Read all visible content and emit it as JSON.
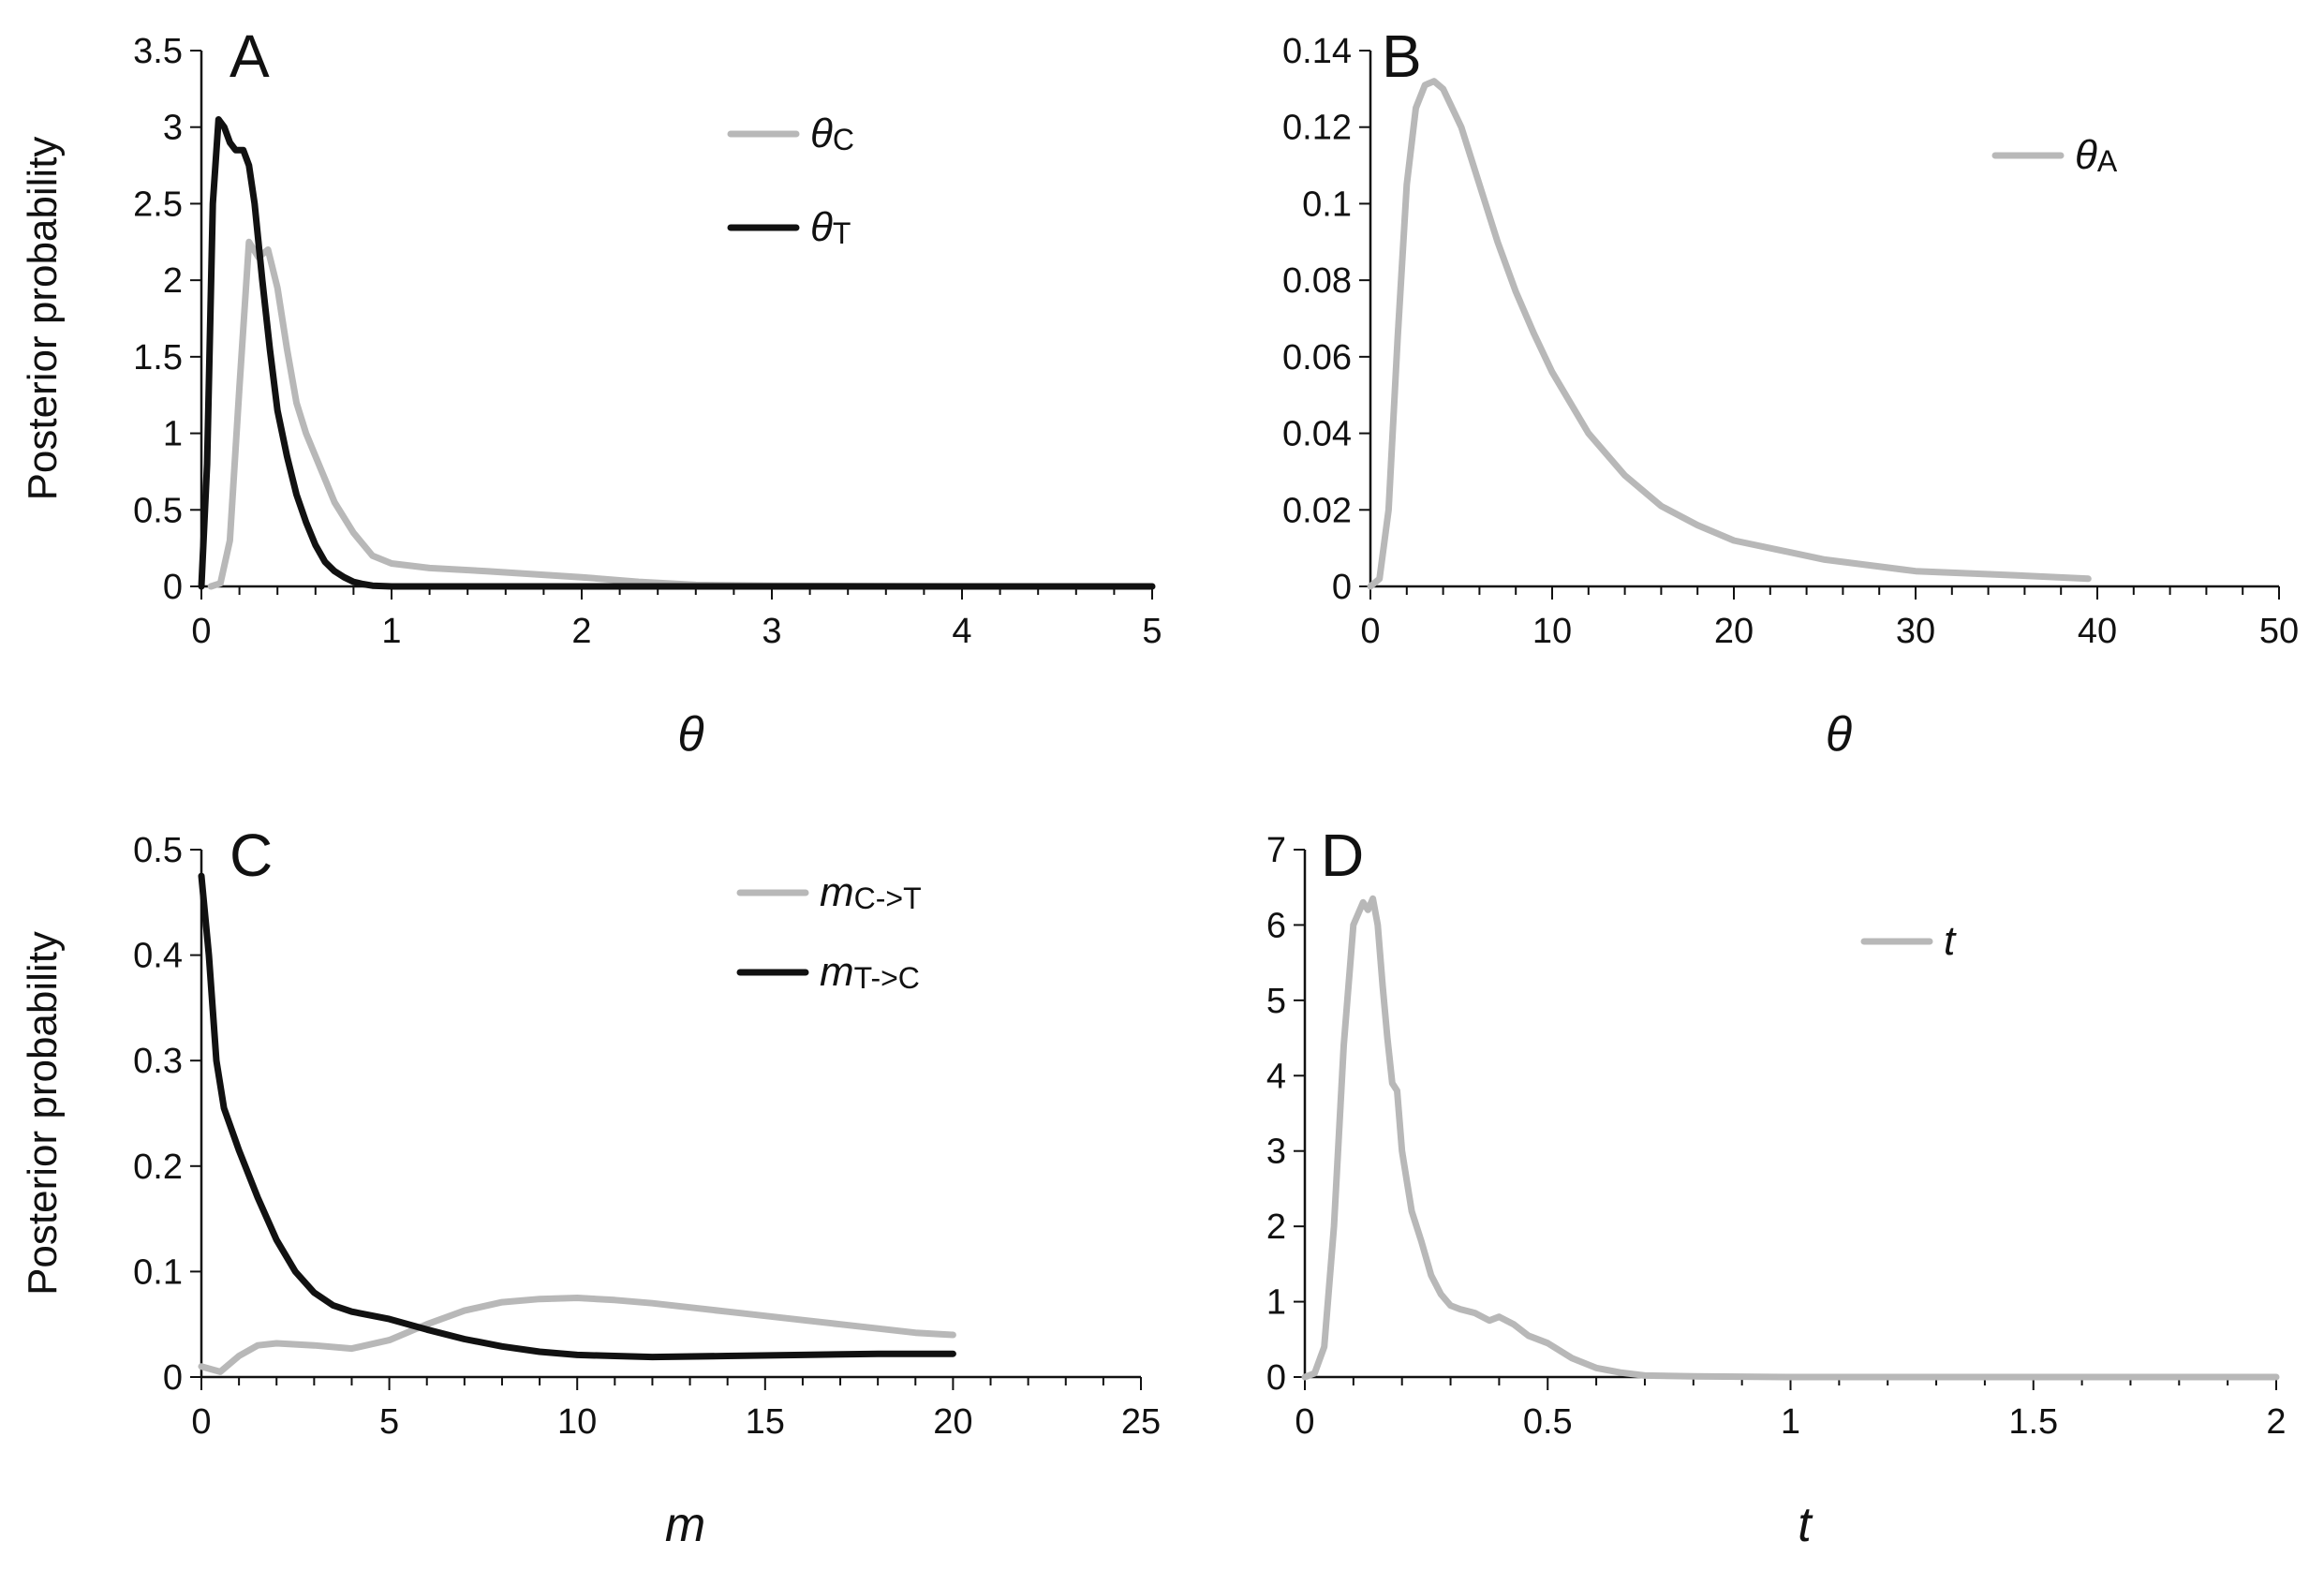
{
  "chart_data": [
    {
      "panel": "A",
      "type": "line",
      "xlabel": "θ",
      "ylabel": "Posterior probability",
      "xlim": [
        0,
        5
      ],
      "ylim": [
        0,
        3.5
      ],
      "xticks": [
        "0",
        "1",
        "2",
        "3",
        "4",
        "5"
      ],
      "yticks": [
        "0",
        "0.5",
        "1",
        "1.5",
        "2",
        "2.5",
        "3",
        "3.5"
      ],
      "legend_position": "top-right",
      "series": [
        {
          "name": "θC",
          "legend_main": "θ",
          "legend_sub": "C",
          "color": "#b8b8b8",
          "x": [
            0.05,
            0.1,
            0.15,
            0.2,
            0.25,
            0.3,
            0.35,
            0.4,
            0.45,
            0.5,
            0.55,
            0.6,
            0.65,
            0.7,
            0.8,
            0.9,
            1.0,
            1.2,
            1.5,
            2.0,
            2.3,
            2.6,
            3.0,
            4.0,
            5.0
          ],
          "y": [
            0,
            0.02,
            0.3,
            1.3,
            2.25,
            2.15,
            2.2,
            1.95,
            1.55,
            1.2,
            1.0,
            0.85,
            0.7,
            0.55,
            0.35,
            0.2,
            0.15,
            0.12,
            0.1,
            0.06,
            0.03,
            0.01,
            0.005,
            0,
            0
          ]
        },
        {
          "name": "θT",
          "legend_main": "θ",
          "legend_sub": "T",
          "color": "#111111",
          "x": [
            0,
            0.03,
            0.06,
            0.09,
            0.12,
            0.15,
            0.18,
            0.22,
            0.25,
            0.28,
            0.32,
            0.36,
            0.4,
            0.45,
            0.5,
            0.55,
            0.6,
            0.65,
            0.7,
            0.75,
            0.8,
            0.85,
            0.9,
            1.0,
            1.5,
            2.0,
            3.0,
            5.0
          ],
          "y": [
            0,
            0.8,
            2.5,
            3.05,
            3.0,
            2.9,
            2.85,
            2.85,
            2.75,
            2.5,
            2.0,
            1.55,
            1.15,
            0.85,
            0.6,
            0.42,
            0.27,
            0.16,
            0.1,
            0.06,
            0.03,
            0.015,
            0.005,
            0,
            0,
            0,
            0,
            0
          ]
        }
      ]
    },
    {
      "panel": "B",
      "type": "line",
      "xlabel": "θ",
      "ylabel": "",
      "xlim": [
        0,
        50
      ],
      "ylim": [
        0,
        0.14
      ],
      "xticks": [
        "0",
        "10",
        "20",
        "30",
        "40",
        "50"
      ],
      "yticks": [
        "0",
        "0.02",
        "0.04",
        "0.06",
        "0.08",
        "0.1",
        "0.12",
        "0.14"
      ],
      "legend_position": "top-right",
      "series": [
        {
          "name": "θA",
          "legend_main": "θ",
          "legend_sub": "A",
          "color": "#b8b8b8",
          "x": [
            0,
            0.5,
            1,
            1.5,
            2,
            2.5,
            3,
            3.5,
            4,
            5,
            6,
            7,
            8,
            9,
            10,
            12,
            14,
            16,
            18,
            20,
            25,
            30,
            35,
            39.5
          ],
          "y": [
            0,
            0.002,
            0.02,
            0.065,
            0.105,
            0.125,
            0.131,
            0.132,
            0.13,
            0.12,
            0.105,
            0.09,
            0.077,
            0.066,
            0.056,
            0.04,
            0.029,
            0.021,
            0.016,
            0.012,
            0.007,
            0.004,
            0.003,
            0.002
          ]
        }
      ]
    },
    {
      "panel": "C",
      "type": "line",
      "xlabel": "m",
      "ylabel": "Posterior probability",
      "xlim": [
        0,
        25
      ],
      "ylim": [
        0,
        0.5
      ],
      "xticks": [
        "0",
        "5",
        "10",
        "15",
        "20",
        "25"
      ],
      "yticks": [
        "0",
        "0.1",
        "0.2",
        "0.3",
        "0.4",
        "0.5"
      ],
      "legend_position": "top-right",
      "series": [
        {
          "name": "mC->T",
          "legend_main": "m",
          "legend_sub": "C->T",
          "color": "#b8b8b8",
          "x": [
            0,
            0.5,
            1,
            1.5,
            2,
            3,
            4,
            5,
            6,
            7,
            8,
            9,
            10,
            11,
            12,
            13,
            14,
            15,
            16,
            17,
            18,
            19,
            20
          ],
          "y": [
            0.01,
            0.005,
            0.02,
            0.03,
            0.032,
            0.03,
            0.027,
            0.035,
            0.05,
            0.063,
            0.071,
            0.074,
            0.075,
            0.073,
            0.07,
            0.066,
            0.062,
            0.058,
            0.054,
            0.05,
            0.046,
            0.042,
            0.04
          ]
        },
        {
          "name": "mT->C",
          "legend_main": "m",
          "legend_sub": "T->C",
          "color": "#111111",
          "x": [
            0,
            0.2,
            0.4,
            0.6,
            0.8,
            1,
            1.5,
            2,
            2.5,
            3,
            3.5,
            4,
            5,
            6,
            7,
            8,
            9,
            10,
            11,
            12,
            14,
            16,
            18,
            20
          ],
          "y": [
            0.475,
            0.4,
            0.3,
            0.255,
            0.235,
            0.215,
            0.17,
            0.13,
            0.1,
            0.08,
            0.068,
            0.062,
            0.055,
            0.045,
            0.036,
            0.029,
            0.024,
            0.021,
            0.02,
            0.019,
            0.02,
            0.021,
            0.022,
            0.022
          ]
        }
      ]
    },
    {
      "panel": "D",
      "type": "line",
      "xlabel": "t",
      "ylabel": "",
      "xlim": [
        0,
        2
      ],
      "ylim": [
        0,
        7
      ],
      "xticks": [
        "0",
        "0.5",
        "1",
        "1.5",
        "2"
      ],
      "yticks": [
        "0",
        "1",
        "2",
        "3",
        "4",
        "5",
        "6",
        "7"
      ],
      "legend_position": "top-right",
      "series": [
        {
          "name": "t",
          "legend_main": "t",
          "legend_sub": "",
          "color": "#b8b8b8",
          "x": [
            0,
            0.02,
            0.04,
            0.06,
            0.08,
            0.1,
            0.12,
            0.13,
            0.14,
            0.15,
            0.16,
            0.17,
            0.18,
            0.19,
            0.2,
            0.22,
            0.24,
            0.26,
            0.28,
            0.3,
            0.32,
            0.35,
            0.38,
            0.4,
            0.43,
            0.46,
            0.5,
            0.55,
            0.6,
            0.65,
            0.7,
            0.8,
            1.0,
            1.5,
            2.0
          ],
          "y": [
            0,
            0.05,
            0.4,
            2.0,
            4.4,
            6.0,
            6.3,
            6.2,
            6.35,
            6.0,
            5.2,
            4.5,
            3.9,
            3.8,
            3.0,
            2.2,
            1.8,
            1.35,
            1.1,
            0.95,
            0.9,
            0.85,
            0.75,
            0.8,
            0.7,
            0.55,
            0.45,
            0.25,
            0.12,
            0.06,
            0.02,
            0.01,
            0,
            0,
            0
          ]
        }
      ]
    }
  ]
}
